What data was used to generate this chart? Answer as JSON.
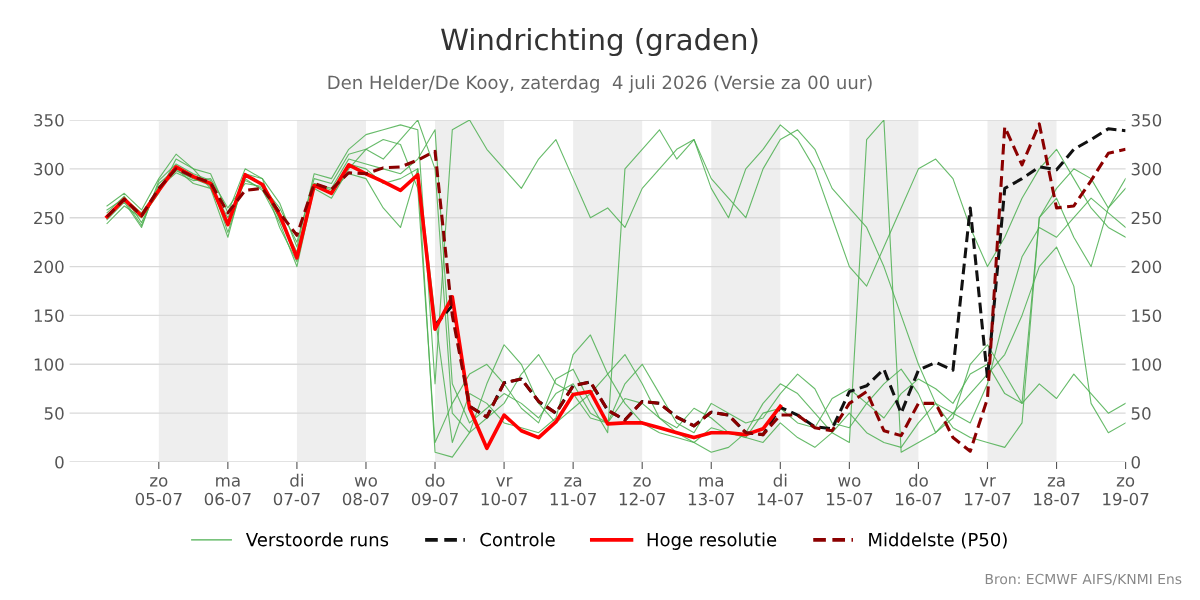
{
  "chart_data": {
    "type": "line",
    "title": "Windrichting (graden)",
    "subtitle": "Den Helder/De Kooy, zaterdag  4 juli 2026 (Versie za 00 uur)",
    "x": [
      "2026-07-04T06:00",
      "2026-07-04T12:00",
      "2026-07-04T18:00",
      "2026-07-05T00:00",
      "2026-07-05T06:00",
      "2026-07-05T12:00",
      "2026-07-05T18:00",
      "2026-07-06T00:00",
      "2026-07-06T06:00",
      "2026-07-06T12:00",
      "2026-07-06T18:00",
      "2026-07-07T00:00",
      "2026-07-07T06:00",
      "2026-07-07T12:00",
      "2026-07-07T18:00",
      "2026-07-08T00:00",
      "2026-07-08T06:00",
      "2026-07-08T12:00",
      "2026-07-08T18:00",
      "2026-07-09T00:00",
      "2026-07-09T06:00",
      "2026-07-09T12:00",
      "2026-07-09T18:00",
      "2026-07-10T00:00",
      "2026-07-10T06:00",
      "2026-07-10T12:00",
      "2026-07-10T18:00",
      "2026-07-11T00:00",
      "2026-07-11T06:00",
      "2026-07-11T12:00",
      "2026-07-11T18:00",
      "2026-07-12T00:00",
      "2026-07-12T06:00",
      "2026-07-12T12:00",
      "2026-07-12T18:00",
      "2026-07-13T00:00",
      "2026-07-13T06:00",
      "2026-07-13T12:00",
      "2026-07-13T18:00",
      "2026-07-14T00:00",
      "2026-07-14T06:00",
      "2026-07-14T12:00",
      "2026-07-14T18:00",
      "2026-07-15T00:00",
      "2026-07-15T06:00",
      "2026-07-15T12:00",
      "2026-07-15T18:00",
      "2026-07-16T00:00",
      "2026-07-16T06:00",
      "2026-07-16T12:00",
      "2026-07-16T18:00",
      "2026-07-17T00:00",
      "2026-07-17T06:00",
      "2026-07-17T12:00",
      "2026-07-17T18:00",
      "2026-07-18T00:00",
      "2026-07-18T06:00",
      "2026-07-18T12:00",
      "2026-07-18T18:00",
      "2026-07-19T00:00"
    ],
    "series": [
      {
        "name": "Verstoorde runs",
        "color": "#4caf50",
        "line_style": "solid",
        "values": [
          255,
          272,
          245,
          282,
          298,
          290,
          283,
          250,
          288,
          280,
          250,
          215,
          285,
          280,
          310,
          305,
          300,
          295,
          310,
          340,
          80,
          40,
          55,
          70,
          60,
          45,
          70,
          80,
          50,
          40,
          65,
          60,
          45,
          35,
          55,
          45,
          30,
          25,
          50,
          55,
          40,
          35,
          65,
          75,
          60,
          45,
          70,
          85,
          75,
          60,
          90,
          100,
          70,
          60,
          80,
          65,
          90,
          70,
          50,
          60
        ]
      },
      {
        "color": "#4caf50",
        "line_style": "solid",
        "values": [
          248,
          266,
          240,
          288,
          305,
          295,
          288,
          235,
          290,
          278,
          245,
          200,
          280,
          270,
          300,
          320,
          330,
          325,
          280,
          20,
          60,
          90,
          100,
          80,
          55,
          40,
          85,
          95,
          60,
          30,
          300,
          320,
          340,
          310,
          330,
          280,
          250,
          300,
          320,
          345,
          330,
          300,
          250,
          200,
          180,
          220,
          260,
          300,
          310,
          290,
          240,
          200,
          230,
          270,
          300,
          320,
          290,
          260,
          240,
          230
        ]
      },
      {
        "color": "#4caf50",
        "line_style": "solid",
        "values": [
          258,
          270,
          255,
          280,
          296,
          288,
          290,
          260,
          285,
          282,
          260,
          225,
          290,
          285,
          315,
          320,
          310,
          330,
          350,
          300,
          50,
          30,
          45,
          60,
          90,
          110,
          80,
          70,
          45,
          40,
          80,
          100,
          70,
          40,
          30,
          60,
          50,
          40,
          45,
          70,
          90,
          75,
          40,
          35,
          60,
          80,
          95,
          70,
          30,
          45,
          100,
          120,
          90,
          60,
          250,
          270,
          230,
          200,
          260,
          290
        ]
      },
      {
        "color": "#4caf50",
        "line_style": "solid",
        "values": [
          244,
          262,
          250,
          275,
          310,
          300,
          280,
          230,
          295,
          290,
          240,
          205,
          285,
          278,
          295,
          290,
          260,
          240,
          300,
          150,
          20,
          70,
          60,
          40,
          35,
          30,
          45,
          110,
          130,
          90,
          60,
          40,
          30,
          25,
          20,
          35,
          30,
          25,
          20,
          40,
          25,
          15,
          30,
          50,
          30,
          20,
          15,
          40,
          60,
          35,
          25,
          20,
          15,
          40,
          250,
          280,
          300,
          290,
          260,
          280
        ]
      },
      {
        "color": "#4caf50",
        "line_style": "solid",
        "values": [
          262,
          275,
          258,
          290,
          315,
          300,
          295,
          255,
          300,
          290,
          265,
          220,
          295,
          290,
          320,
          335,
          340,
          345,
          340,
          80,
          340,
          350,
          320,
          300,
          280,
          310,
          330,
          290,
          250,
          260,
          240,
          280,
          300,
          320,
          330,
          290,
          270,
          250,
          300,
          330,
          340,
          320,
          280,
          260,
          240,
          200,
          150,
          100,
          60,
          50,
          40,
          80,
          150,
          210,
          240,
          230,
          250,
          270,
          255,
          240
        ]
      },
      {
        "color": "#4caf50",
        "line_style": "solid",
        "values": [
          250,
          268,
          242,
          285,
          300,
          285,
          280,
          245,
          292,
          285,
          248,
          212,
          282,
          276,
          305,
          300,
          285,
          290,
          300,
          10,
          5,
          30,
          80,
          120,
          100,
          60,
          40,
          55,
          70,
          90,
          110,
          80,
          45,
          30,
          20,
          10,
          15,
          30,
          60,
          80,
          70,
          50,
          30,
          20,
          330,
          350,
          10,
          20,
          30,
          50,
          70,
          90,
          110,
          150,
          200,
          220,
          180,
          60,
          30,
          40
        ]
      },
      {
        "name": "Controle",
        "color": "#111111",
        "line_style": "dashed",
        "values": [
          null,
          null,
          null,
          null,
          null,
          null,
          null,
          null,
          null,
          null,
          null,
          null,
          null,
          null,
          null,
          null,
          null,
          null,
          null,
          140,
          160,
          57,
          46,
          81,
          85,
          62,
          50,
          78,
          82,
          53,
          43,
          62,
          60,
          46,
          37,
          51,
          48,
          30,
          28,
          56,
          48,
          36,
          34,
          72,
          78,
          95,
          50,
          94,
          102,
          94,
          260,
          86,
          280,
          290,
          302,
          299,
          320,
          330,
          341,
          339
        ]
      },
      {
        "name": "Hoge resolutie",
        "color": "#ff0000",
        "line_style": "solid",
        "values": [
          251,
          269,
          252,
          278,
          302,
          292,
          285,
          243,
          294,
          284,
          253,
          209,
          283,
          275,
          304,
          295,
          287,
          278,
          294,
          136,
          169,
          55,
          14,
          48,
          32,
          25,
          41,
          69,
          72,
          39,
          40,
          40,
          35,
          30,
          25,
          30,
          30,
          28,
          34,
          57,
          null,
          null,
          null,
          null,
          null,
          null,
          null,
          null,
          null,
          null,
          null,
          null,
          null,
          null,
          null,
          null,
          null,
          null,
          null,
          null
        ]
      },
      {
        "name": "Middelste (P50)",
        "color": "#8b0000",
        "line_style": "dashed",
        "values": [
          251,
          269,
          252,
          280,
          300,
          292,
          286,
          255,
          278,
          280,
          255,
          232,
          285,
          279,
          296,
          295,
          301,
          302,
          309,
          318,
          150,
          57,
          46,
          81,
          85,
          62,
          50,
          78,
          82,
          53,
          43,
          62,
          60,
          46,
          37,
          51,
          48,
          30,
          28,
          48,
          48,
          35,
          32,
          60,
          72,
          32,
          27,
          60,
          60,
          25,
          11,
          65,
          343,
          304,
          346,
          260,
          262,
          288,
          316,
          320
        ]
      }
    ],
    "xlim": [
      "2026-07-03T17:00",
      "2026-07-19T00:00"
    ],
    "xticks": [
      {
        "value": "2026-07-05",
        "label": "zo\n05-07"
      },
      {
        "value": "2026-07-06",
        "label": "ma\n06-07"
      },
      {
        "value": "2026-07-07",
        "label": "di\n07-07"
      },
      {
        "value": "2026-07-08",
        "label": "wo\n08-07"
      },
      {
        "value": "2026-07-09",
        "label": "do\n09-07"
      },
      {
        "value": "2026-07-10",
        "label": "vr\n10-07"
      },
      {
        "value": "2026-07-11",
        "label": "za\n11-07"
      },
      {
        "value": "2026-07-12",
        "label": "zo\n12-07"
      },
      {
        "value": "2026-07-13",
        "label": "ma\n13-07"
      },
      {
        "value": "2026-07-14",
        "label": "di\n14-07"
      },
      {
        "value": "2026-07-15",
        "label": "wo\n15-07"
      },
      {
        "value": "2026-07-16",
        "label": "do\n16-07"
      },
      {
        "value": "2026-07-17",
        "label": "vr\n17-07"
      },
      {
        "value": "2026-07-18",
        "label": "za\n18-07"
      },
      {
        "value": "2026-07-19",
        "label": "zo\n19-07"
      }
    ],
    "ylim": [
      0,
      350
    ],
    "yticks": [
      0,
      50,
      100,
      150,
      200,
      250,
      300,
      350
    ],
    "y2lim": [
      0,
      350
    ],
    "y2ticks": [
      0,
      50,
      100,
      150,
      200,
      250,
      300,
      350
    ],
    "bands": [
      {
        "axis": "x",
        "from": "2026-07-05",
        "to": "2026-07-06",
        "color": "#eeeeee"
      },
      {
        "axis": "x",
        "from": "2026-07-07",
        "to": "2026-07-08",
        "color": "#eeeeee"
      },
      {
        "axis": "x",
        "from": "2026-07-09",
        "to": "2026-07-10",
        "color": "#eeeeee"
      },
      {
        "axis": "x",
        "from": "2026-07-11",
        "to": "2026-07-12",
        "color": "#eeeeee"
      },
      {
        "axis": "x",
        "from": "2026-07-13",
        "to": "2026-07-14",
        "color": "#eeeeee"
      },
      {
        "axis": "x",
        "from": "2026-07-15",
        "to": "2026-07-16",
        "color": "#eeeeee"
      },
      {
        "axis": "x",
        "from": "2026-07-17",
        "to": "2026-07-18",
        "color": "#eeeeee"
      }
    ],
    "grid": "y",
    "legend": "bottom",
    "marker": "none",
    "annotations": [
      "Bron: ECMWF AIFS/KNMI Ens"
    ]
  }
}
